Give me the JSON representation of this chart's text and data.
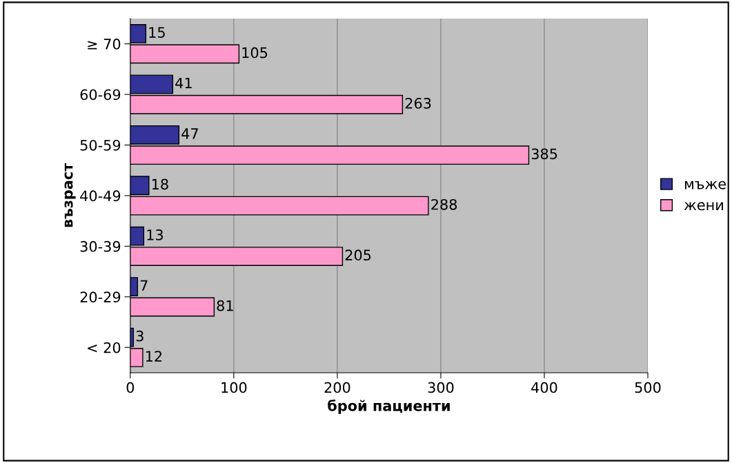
{
  "chart_data": {
    "type": "bar",
    "orientation": "horizontal",
    "xlabel": "брой пациенти",
    "ylabel": "възраст",
    "categories": [
      "≥ 70",
      "60-69",
      "50-59",
      "40-49",
      "30-39",
      "20-29",
      "< 20"
    ],
    "series": [
      {
        "name": "мъже",
        "color": "#333399",
        "values": [
          15,
          41,
          47,
          18,
          13,
          7,
          3
        ]
      },
      {
        "name": "жени",
        "color": "#ff99cc",
        "values": [
          105,
          263,
          385,
          288,
          205,
          81,
          12
        ]
      }
    ],
    "xlim": [
      0,
      500
    ],
    "xticks": [
      0,
      100,
      200,
      300,
      400,
      500
    ],
    "grid": "x",
    "legend": "right",
    "data_labels": true
  }
}
